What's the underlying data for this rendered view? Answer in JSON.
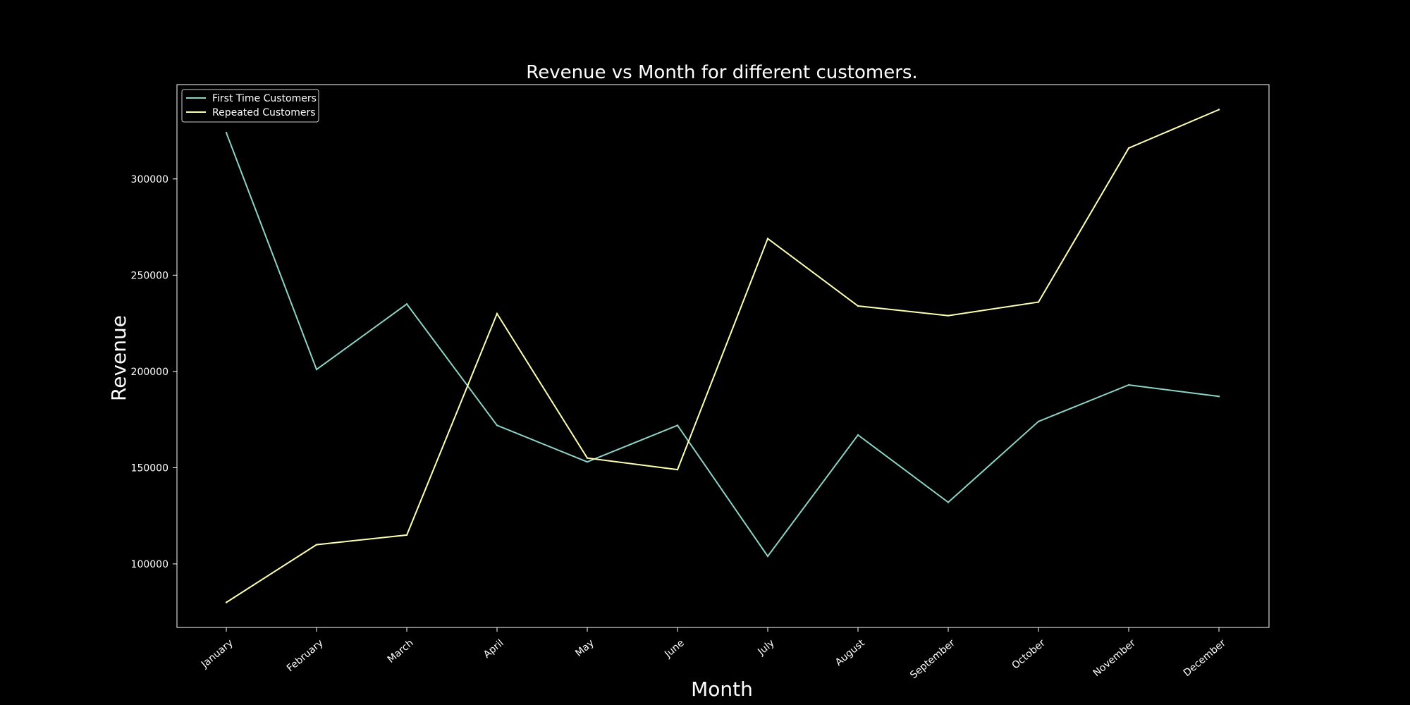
{
  "chart_data": {
    "type": "line",
    "title": "Revenue vs Month for different customers.",
    "xlabel": "Month",
    "ylabel": "Revenue",
    "categories": [
      "January",
      "February",
      "March",
      "April",
      "May",
      "June",
      "July",
      "August",
      "September",
      "October",
      "November",
      "December"
    ],
    "series": [
      {
        "name": "First Time Customers",
        "color": "#8dd3c7",
        "values": [
          324000,
          201000,
          235000,
          172000,
          153000,
          172000,
          104000,
          167000,
          132000,
          174000,
          193000,
          187000
        ]
      },
      {
        "name": "Repeated Customers",
        "color": "#ffffb3",
        "values": [
          80000,
          110000,
          115000,
          230000,
          155000,
          149000,
          269000,
          234000,
          229000,
          236000,
          316000,
          336000
        ]
      }
    ],
    "yticks": [
      "100000",
      "150000",
      "200000",
      "250000",
      "300000"
    ],
    "ylim": [
      67000,
      349000
    ],
    "grid": false,
    "legend_position": "top-left",
    "background": "#000000",
    "axis_color": "#ffffff"
  }
}
